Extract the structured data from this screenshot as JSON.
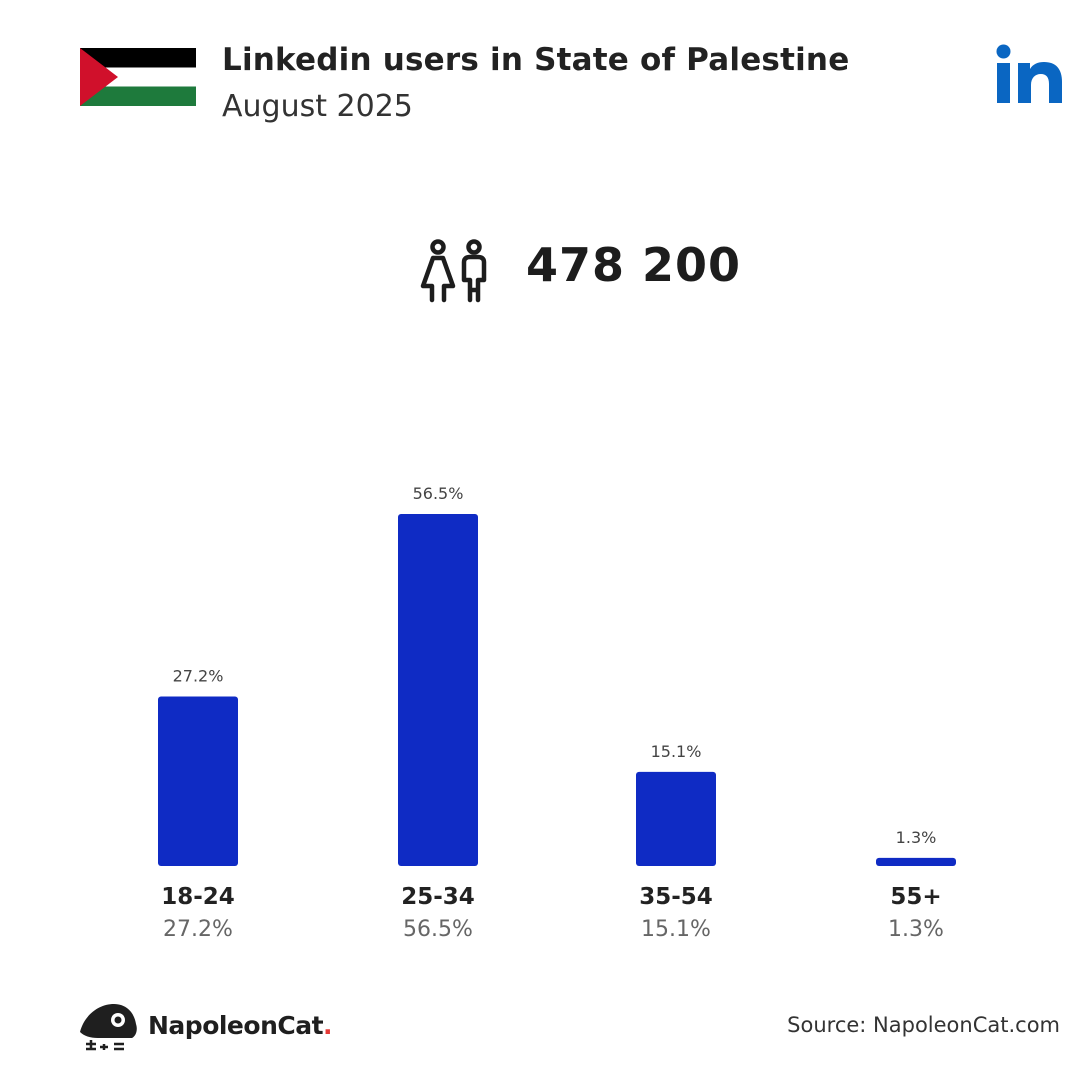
{
  "header": {
    "title": "Linkedin users in State of Palestine",
    "subtitle": "August 2025"
  },
  "summary": {
    "total_users": "478 200",
    "icon": "users-icon"
  },
  "colors": {
    "bar": "#0f2bc4",
    "linkedin": "#0a66c2",
    "flag_black": "#000000",
    "flag_white": "#ffffff",
    "flag_green": "#1e7a3c",
    "flag_red": "#d0102b"
  },
  "chart_data": {
    "type": "bar",
    "title": "",
    "xlabel": "",
    "ylabel": "",
    "ylim": [
      0,
      56.5
    ],
    "grid": false,
    "categories": [
      "18-24",
      "25-34",
      "35-54",
      "55+"
    ],
    "values": [
      27.2,
      56.5,
      15.1,
      1.3
    ],
    "value_labels": [
      "27.2%",
      "56.5%",
      "15.1%",
      "1.3%"
    ]
  },
  "footer": {
    "brand_name": "NapoleonCat",
    "brand_dot": ".",
    "source": "Source: NapoleonCat.com"
  }
}
